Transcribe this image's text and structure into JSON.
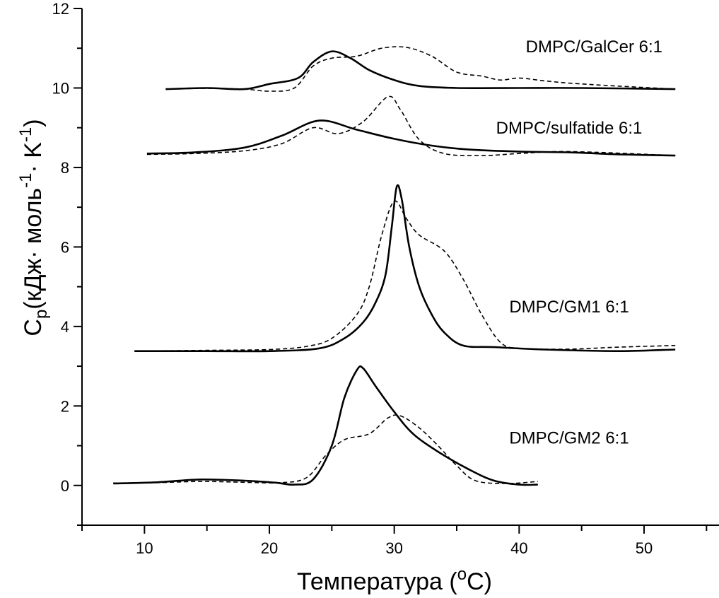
{
  "chart_data": {
    "type": "line",
    "xlabel_main": "Температура (",
    "xlabel_sup": "o",
    "xlabel_end": "C)",
    "ylabel_main": "C",
    "ylabel_sub": "p",
    "ylabel_unit": "(кДж· моль",
    "ylabel_sup1": "-1",
    "ylabel_mid": "· K",
    "ylabel_sup2": "-1",
    "ylabel_end": ")",
    "xlim": [
      5,
      56
    ],
    "ylim": [
      -1,
      12
    ],
    "x_ticks": [
      10,
      20,
      30,
      40,
      50
    ],
    "y_ticks": [
      0,
      2,
      4,
      6,
      8,
      10,
      12
    ],
    "series_styles": {
      "solid": "#000000",
      "dashed": "#000000"
    },
    "groups": [
      {
        "name": "DMPC/GalCer 6:1",
        "label_at": [
          46,
          10.9
        ],
        "solid": [
          [
            11.7,
            9.97
          ],
          [
            15,
            10.0
          ],
          [
            18,
            9.97
          ],
          [
            20,
            10.1
          ],
          [
            22.3,
            10.25
          ],
          [
            23.5,
            10.65
          ],
          [
            25,
            10.92
          ],
          [
            26.5,
            10.75
          ],
          [
            28,
            10.45
          ],
          [
            30,
            10.2
          ],
          [
            32,
            10.05
          ],
          [
            35,
            10.0
          ],
          [
            40,
            10.0
          ],
          [
            45,
            10.0
          ],
          [
            52.5,
            9.97
          ]
        ],
        "dashed": [
          [
            11.7,
            9.97
          ],
          [
            15,
            9.99
          ],
          [
            18,
            9.97
          ],
          [
            20,
            9.92
          ],
          [
            22,
            10.0
          ],
          [
            23.5,
            10.55
          ],
          [
            25,
            10.75
          ],
          [
            27,
            10.8
          ],
          [
            29,
            11.0
          ],
          [
            31,
            11.02
          ],
          [
            33,
            10.8
          ],
          [
            35,
            10.4
          ],
          [
            37,
            10.3
          ],
          [
            38.5,
            10.2
          ],
          [
            40,
            10.25
          ],
          [
            42,
            10.18
          ],
          [
            45,
            10.1
          ],
          [
            52.5,
            9.97
          ]
        ]
      },
      {
        "name": "DMPC/sulfatide 6:1",
        "label_at": [
          44,
          8.85
        ],
        "solid": [
          [
            10.2,
            8.35
          ],
          [
            14,
            8.38
          ],
          [
            18,
            8.5
          ],
          [
            21,
            8.8
          ],
          [
            24,
            9.18
          ],
          [
            27,
            8.95
          ],
          [
            30,
            8.72
          ],
          [
            33,
            8.55
          ],
          [
            36,
            8.45
          ],
          [
            40,
            8.4
          ],
          [
            44,
            8.38
          ],
          [
            48,
            8.33
          ],
          [
            52.5,
            8.3
          ]
        ],
        "dashed": [
          [
            10.2,
            8.33
          ],
          [
            14,
            8.35
          ],
          [
            18,
            8.42
          ],
          [
            21,
            8.6
          ],
          [
            23.5,
            9.0
          ],
          [
            25.5,
            8.85
          ],
          [
            27.5,
            9.15
          ],
          [
            29.5,
            9.78
          ],
          [
            30.5,
            9.45
          ],
          [
            32,
            8.7
          ],
          [
            34,
            8.35
          ],
          [
            37,
            8.3
          ],
          [
            40,
            8.35
          ],
          [
            44,
            8.4
          ],
          [
            52.5,
            8.3
          ]
        ]
      },
      {
        "name": "DMPC/GM1 6:1",
        "label_at": [
          44,
          4.35
        ],
        "solid": [
          [
            9.2,
            3.38
          ],
          [
            15,
            3.38
          ],
          [
            20,
            3.38
          ],
          [
            24,
            3.45
          ],
          [
            26,
            3.7
          ],
          [
            27.5,
            4.1
          ],
          [
            28.5,
            4.6
          ],
          [
            29.3,
            5.3
          ],
          [
            29.8,
            6.5
          ],
          [
            30.2,
            7.52
          ],
          [
            30.6,
            7.2
          ],
          [
            31.2,
            6.0
          ],
          [
            32,
            5.0
          ],
          [
            33,
            4.3
          ],
          [
            34,
            3.85
          ],
          [
            35.5,
            3.52
          ],
          [
            38,
            3.48
          ],
          [
            42,
            3.42
          ],
          [
            48,
            3.38
          ],
          [
            52.5,
            3.42
          ]
        ],
        "dashed": [
          [
            9.2,
            3.38
          ],
          [
            15,
            3.4
          ],
          [
            20,
            3.42
          ],
          [
            23,
            3.5
          ],
          [
            25,
            3.7
          ],
          [
            27,
            4.3
          ],
          [
            28,
            5.0
          ],
          [
            29,
            6.3
          ],
          [
            30,
            7.15
          ],
          [
            31,
            6.7
          ],
          [
            32,
            6.3
          ],
          [
            34,
            5.9
          ],
          [
            35.5,
            5.2
          ],
          [
            37,
            4.3
          ],
          [
            38.5,
            3.6
          ],
          [
            40,
            3.45
          ],
          [
            44,
            3.43
          ],
          [
            48,
            3.48
          ],
          [
            52.5,
            3.52
          ]
        ]
      },
      {
        "name": "DMPC/GM2 6:1",
        "label_at": [
          44,
          1.05
        ],
        "solid": [
          [
            7.5,
            0.05
          ],
          [
            11,
            0.08
          ],
          [
            14.5,
            0.15
          ],
          [
            18,
            0.12
          ],
          [
            20.5,
            0.07
          ],
          [
            22,
            0.02
          ],
          [
            23.5,
            0.15
          ],
          [
            25,
            1.0
          ],
          [
            26,
            2.2
          ],
          [
            27,
            2.9
          ],
          [
            27.5,
            2.95
          ],
          [
            28.5,
            2.5
          ],
          [
            30,
            1.85
          ],
          [
            31.5,
            1.3
          ],
          [
            33.5,
            0.85
          ],
          [
            36,
            0.4
          ],
          [
            38,
            0.12
          ],
          [
            40,
            0.02
          ],
          [
            41.5,
            0.02
          ]
        ],
        "dashed": [
          [
            7.5,
            0.06
          ],
          [
            11,
            0.07
          ],
          [
            14.5,
            0.1
          ],
          [
            18,
            0.08
          ],
          [
            21,
            0.07
          ],
          [
            23,
            0.2
          ],
          [
            24.5,
            0.75
          ],
          [
            26,
            1.15
          ],
          [
            28,
            1.3
          ],
          [
            29.5,
            1.7
          ],
          [
            30.5,
            1.75
          ],
          [
            32,
            1.45
          ],
          [
            33.5,
            1.0
          ],
          [
            35,
            0.5
          ],
          [
            36.5,
            0.12
          ],
          [
            39,
            0.05
          ],
          [
            41.5,
            0.1
          ]
        ]
      }
    ]
  }
}
